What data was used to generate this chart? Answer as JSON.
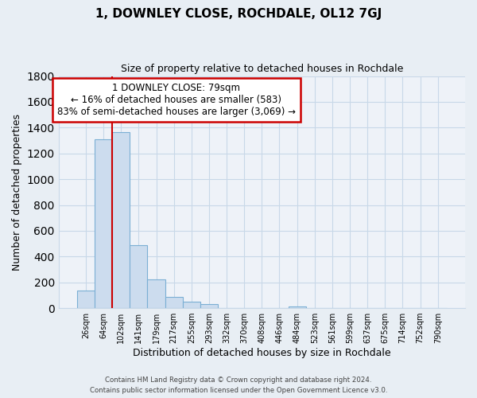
{
  "title": "1, DOWNLEY CLOSE, ROCHDALE, OL12 7GJ",
  "subtitle": "Size of property relative to detached houses in Rochdale",
  "xlabel": "Distribution of detached houses by size in Rochdale",
  "ylabel": "Number of detached properties",
  "bar_labels": [
    "26sqm",
    "64sqm",
    "102sqm",
    "141sqm",
    "179sqm",
    "217sqm",
    "255sqm",
    "293sqm",
    "332sqm",
    "370sqm",
    "408sqm",
    "446sqm",
    "484sqm",
    "523sqm",
    "561sqm",
    "599sqm",
    "637sqm",
    "675sqm",
    "714sqm",
    "752sqm",
    "790sqm"
  ],
  "bar_values": [
    135,
    1310,
    1365,
    490,
    225,
    85,
    50,
    30,
    0,
    0,
    0,
    0,
    15,
    0,
    0,
    0,
    0,
    0,
    0,
    0,
    0
  ],
  "bar_color": "#ccdcee",
  "bar_edge_color": "#7bafd4",
  "vline_color": "#cc0000",
  "annotation_line1": "1 DOWNLEY CLOSE: 79sqm",
  "annotation_line2": "← 16% of detached houses are smaller (583)",
  "annotation_line3": "83% of semi-detached houses are larger (3,069) →",
  "annotation_box_color": "#ffffff",
  "annotation_box_edge": "#cc0000",
  "ylim": [
    0,
    1800
  ],
  "yticks": [
    0,
    200,
    400,
    600,
    800,
    1000,
    1200,
    1400,
    1600,
    1800
  ],
  "grid_color": "#c8d8e8",
  "footer1": "Contains HM Land Registry data © Crown copyright and database right 2024.",
  "footer2": "Contains public sector information licensed under the Open Government Licence v3.0.",
  "bg_color": "#e8eef4",
  "plot_bg_color": "#eef2f8"
}
